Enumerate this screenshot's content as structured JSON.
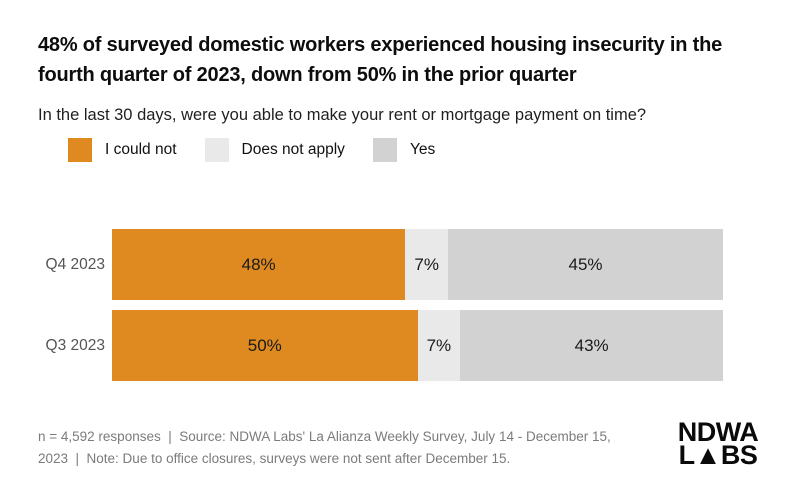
{
  "header": {
    "title": "48% of surveyed domestic workers experienced housing insecurity in the fourth quarter of 2023, down from 50% in the prior quarter",
    "subtitle": "In the last 30 days, were you able to make your rent or mortgage payment on time?"
  },
  "chart_data": {
    "type": "bar",
    "orientation": "horizontal",
    "stacked": true,
    "units": "percent",
    "xlim": [
      0,
      100
    ],
    "grid": false,
    "legend_position": "top-left",
    "categories": [
      "Q4 2023",
      "Q3 2023"
    ],
    "series": [
      {
        "name": "I could not",
        "color": "#DE8A20",
        "values": [
          48,
          50
        ]
      },
      {
        "name": "Does not apply",
        "color": "#E9E9E9",
        "values": [
          7,
          7
        ]
      },
      {
        "name": "Yes",
        "color": "#D2D2D2",
        "values": [
          45,
          43
        ]
      }
    ],
    "labels": [
      [
        "48%",
        "7%",
        "45%"
      ],
      [
        "50%",
        "7%",
        "43%"
      ]
    ]
  },
  "footer": {
    "text": "n = 4,592 responses  |  Source: NDWA Labs' La Alianza Weekly Survey, July 14 - December 15, 2023  |  Note: Due to office closures, surveys were not sent after December 15."
  },
  "logo": {
    "line1": "NDWA",
    "line2": "L▲BS"
  },
  "colors": {
    "accent_orange": "#DE8A20",
    "light_gray": "#E9E9E9",
    "mid_gray": "#D2D2D2",
    "title_text": "#0D0D0D",
    "muted_text": "#7B7B7B"
  }
}
